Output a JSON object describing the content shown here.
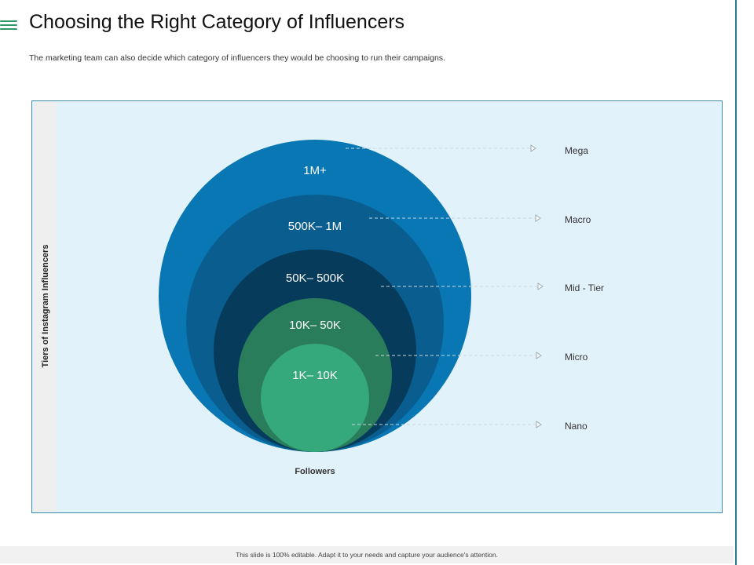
{
  "header": {
    "title": "Choosing the Right Category of Influencers",
    "subtitle": "The marketing team can also decide which category of influencers they would be choosing to run their campaigns."
  },
  "diagram": {
    "y_axis_label": "Tiers of Instagram Influencers",
    "x_axis_label": "Followers",
    "tiers": [
      {
        "name": "Mega",
        "range": "1M+",
        "color": "#0877b4"
      },
      {
        "name": "Macro",
        "range": "500K– 1M",
        "color": "#0a5e8f"
      },
      {
        "name": "Mid - Tier",
        "range": "50K– 500K",
        "color": "#063b5c"
      },
      {
        "name": "Micro",
        "range": "10K– 50K",
        "color": "#2a7d5a"
      },
      {
        "name": "Nano",
        "range": "1K– 10K",
        "color": "#35a87c"
      }
    ]
  },
  "footer": {
    "text": "This slide is 100% editable. Adapt it to your needs and capture your audience's attention."
  }
}
